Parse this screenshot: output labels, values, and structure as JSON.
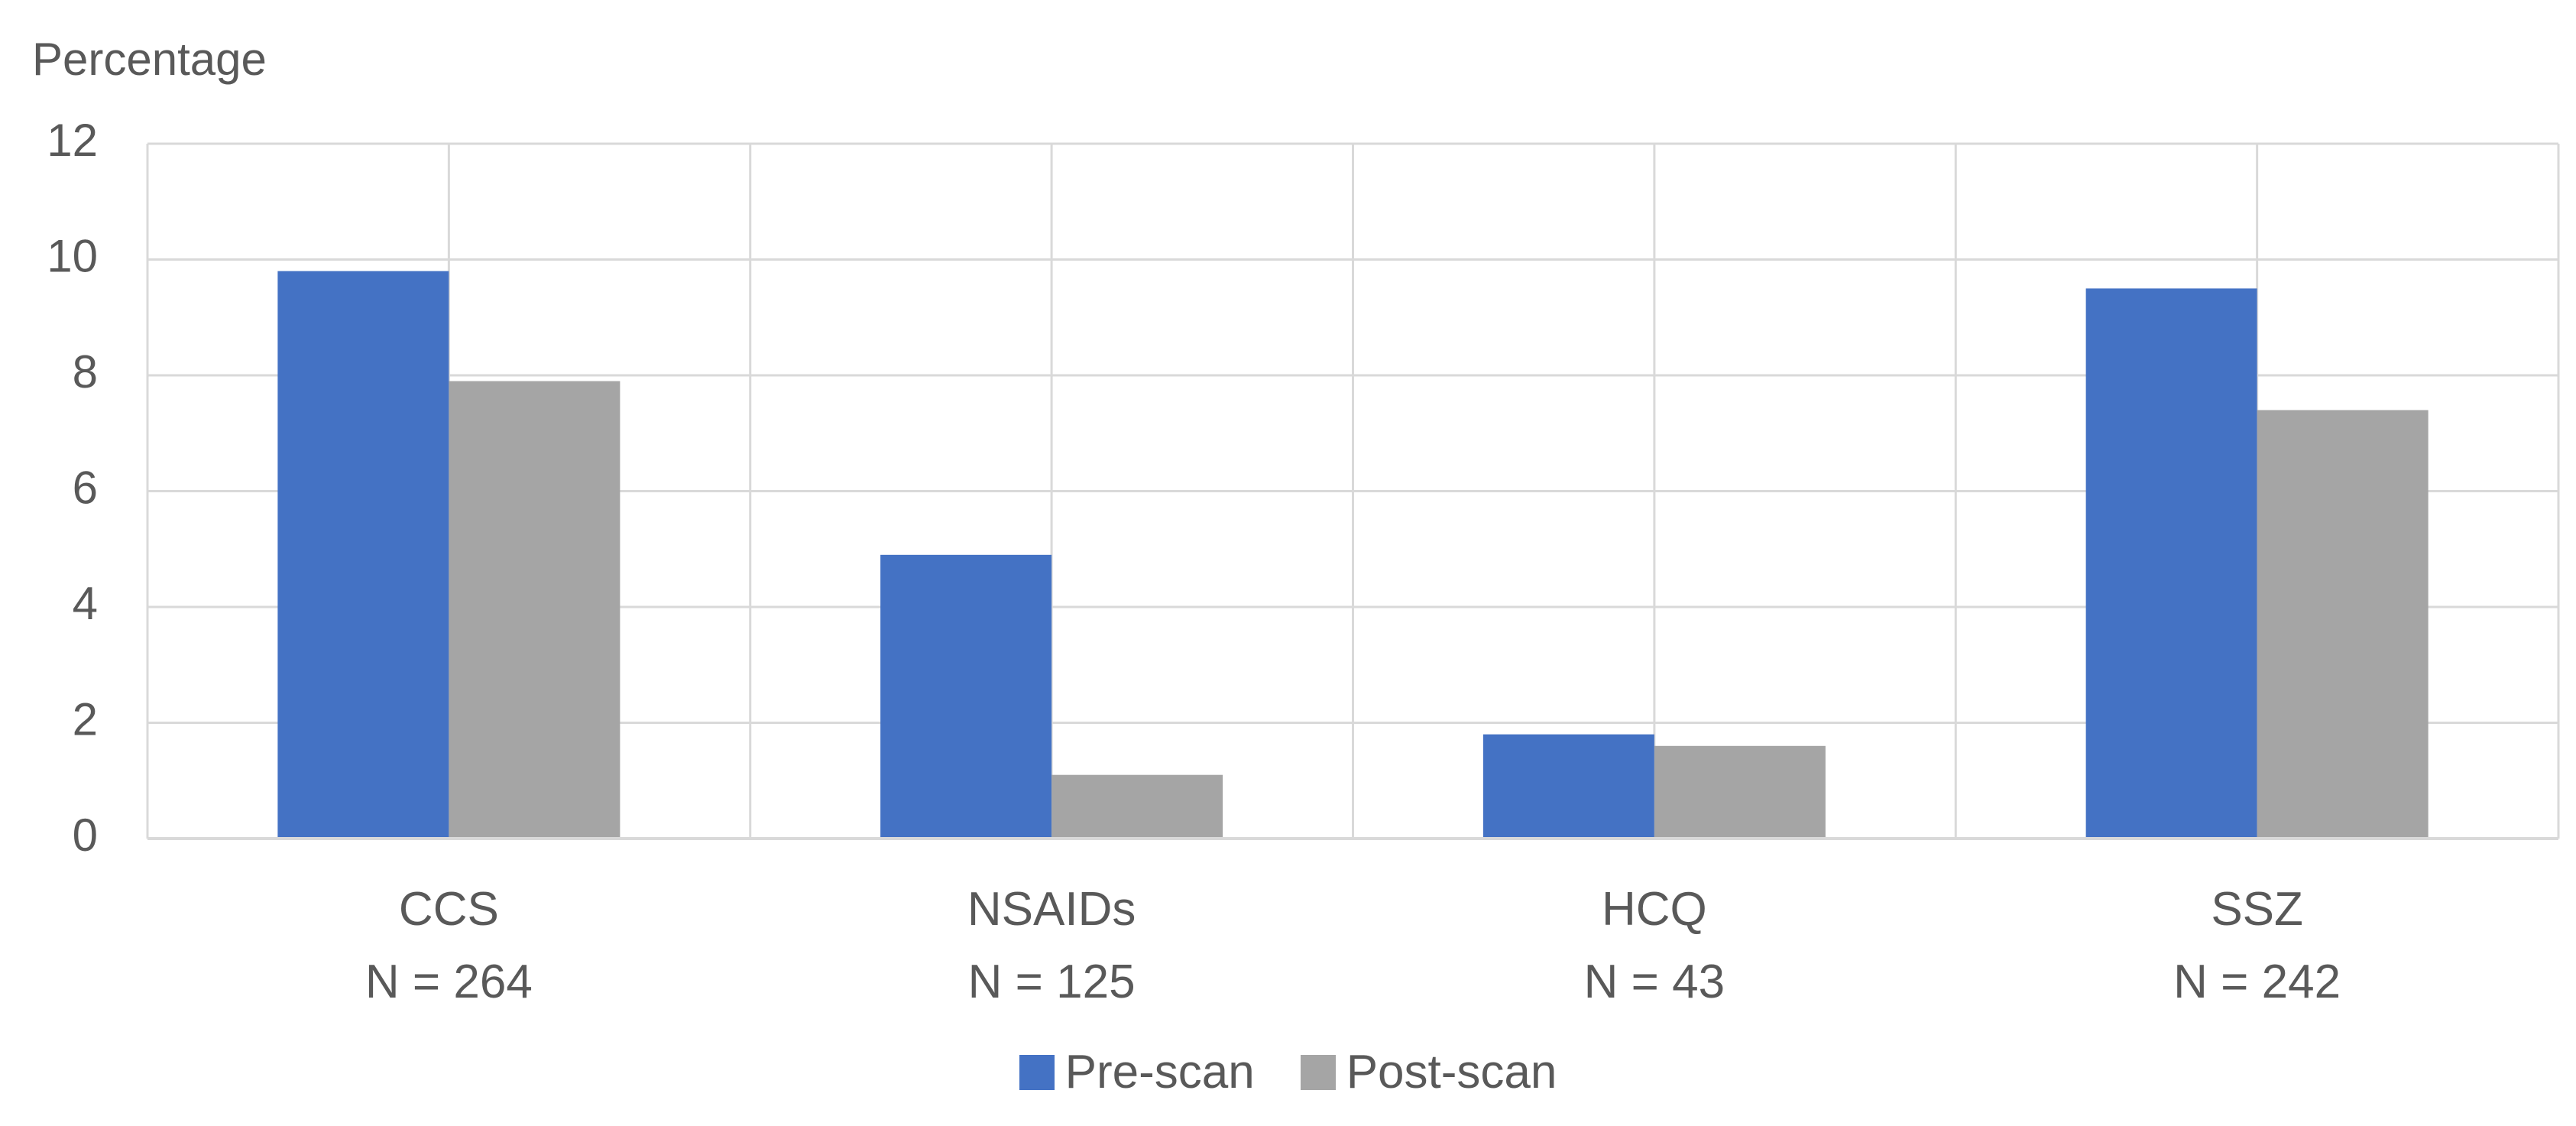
{
  "chart_data": {
    "type": "bar",
    "ylabel": "Percentage",
    "xlabel": "",
    "ylim": [
      0,
      12
    ],
    "yticks": [
      0,
      2,
      4,
      6,
      8,
      10,
      12
    ],
    "grid": true,
    "legend_position": "bottom",
    "categories": [
      {
        "name": "CCS",
        "n_label": "N = 264"
      },
      {
        "name": "NSAIDs",
        "n_label": "N = 125"
      },
      {
        "name": "HCQ",
        "n_label": "N = 43"
      },
      {
        "name": "SSZ",
        "n_label": "N = 242"
      }
    ],
    "series": [
      {
        "name": "Pre-scan",
        "color": "#4472C4",
        "values": [
          9.8,
          4.9,
          1.8,
          9.5
        ]
      },
      {
        "name": "Post-scan",
        "color": "#A5A5A5",
        "values": [
          7.9,
          1.1,
          1.6,
          7.4
        ]
      }
    ]
  }
}
